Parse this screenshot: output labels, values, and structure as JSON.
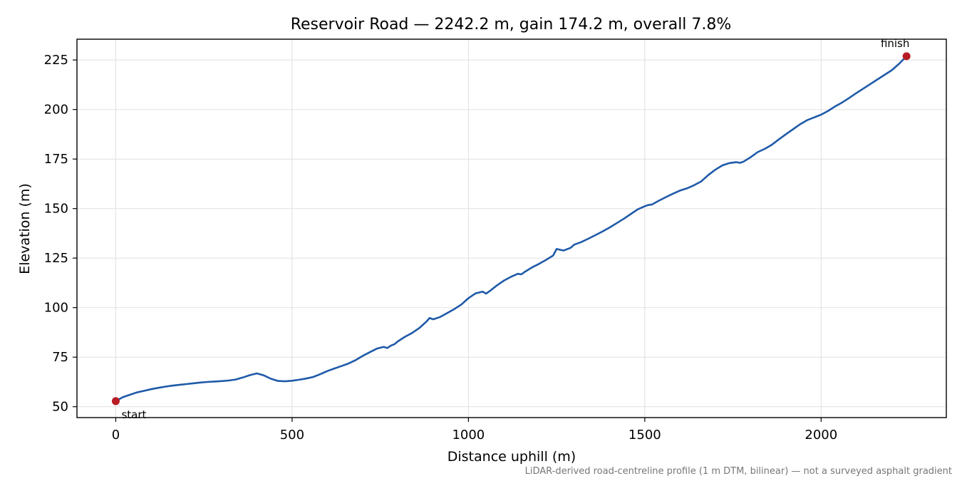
{
  "chart_data": {
    "type": "line",
    "title": "Reservoir Road — 2242.2 m, gain 174.2 m, overall 7.8%",
    "xlabel": "Distance uphill (m)",
    "ylabel": "Elevation (m)",
    "xlim": [
      -110,
      2355
    ],
    "ylim": [
      44.5,
      235.5
    ],
    "xticks": [
      0,
      500,
      1000,
      1500,
      2000
    ],
    "yticks": [
      50,
      75,
      100,
      125,
      150,
      175,
      200,
      225
    ],
    "grid": true,
    "caption": "LiDAR-derived road-centreline profile (1 m DTM, bilinear) — not a surveyed asphalt gradient",
    "colors": {
      "line": "#1f5aa8",
      "marker": "#b81c24",
      "grid": "#e0e0e0"
    },
    "series": [
      {
        "x": [
          0,
          20,
          40,
          60,
          80,
          100,
          120,
          140,
          160,
          180,
          200,
          220,
          240,
          260,
          280,
          300,
          320,
          340,
          360,
          380,
          400,
          420,
          440,
          460,
          480,
          500,
          520,
          540,
          560,
          580,
          600,
          620,
          640,
          660,
          680,
          700,
          720,
          740,
          760,
          770,
          780,
          790,
          800,
          820,
          840,
          860,
          880,
          890,
          900,
          920,
          940,
          960,
          980,
          1000,
          1020,
          1040,
          1050,
          1060,
          1080,
          1100,
          1120,
          1140,
          1150,
          1160,
          1180,
          1200,
          1220,
          1240,
          1250,
          1270,
          1290,
          1300,
          1320,
          1340,
          1360,
          1380,
          1400,
          1420,
          1440,
          1460,
          1480,
          1500,
          1510,
          1520,
          1540,
          1560,
          1580,
          1600,
          1620,
          1640,
          1660,
          1680,
          1700,
          1720,
          1740,
          1760,
          1770,
          1780,
          1800,
          1820,
          1840,
          1860,
          1880,
          1900,
          1920,
          1940,
          1960,
          1980,
          2000,
          2020,
          2040,
          2060,
          2080,
          2100,
          2120,
          2140,
          2160,
          2180,
          2200,
          2220,
          2242.2
        ],
        "y": [
          52.8,
          54.8,
          56.0,
          57.2,
          58.0,
          58.8,
          59.5,
          60.1,
          60.6,
          61.0,
          61.4,
          61.8,
          62.2,
          62.5,
          62.7,
          62.9,
          63.2,
          63.7,
          64.7,
          65.9,
          66.8,
          65.8,
          64.1,
          63.0,
          62.8,
          63.1,
          63.6,
          64.2,
          65.0,
          66.4,
          68.0,
          69.3,
          70.5,
          71.8,
          73.5,
          75.6,
          77.5,
          79.3,
          80.2,
          79.6,
          80.8,
          81.5,
          83.0,
          85.3,
          87.2,
          89.6,
          92.8,
          94.8,
          94.1,
          95.3,
          97.3,
          99.3,
          101.6,
          104.8,
          107.2,
          108.1,
          107.1,
          108.3,
          111.1,
          113.6,
          115.5,
          117.1,
          116.8,
          118.1,
          120.3,
          122.1,
          124.1,
          126.3,
          129.6,
          128.8,
          130.2,
          131.8,
          133.1,
          134.8,
          136.6,
          138.4,
          140.4,
          142.6,
          144.8,
          147.2,
          149.6,
          151.2,
          151.8,
          152.0,
          154.0,
          155.8,
          157.5,
          159.1,
          160.2,
          161.8,
          163.7,
          166.9,
          169.6,
          171.8,
          173.0,
          173.4,
          173.1,
          173.7,
          175.9,
          178.5,
          180.1,
          182.2,
          184.9,
          187.5,
          190.0,
          192.5,
          194.6,
          196.0,
          197.4,
          199.3,
          201.6,
          203.6,
          205.9,
          208.3,
          210.6,
          212.9,
          215.2,
          217.5,
          219.8,
          222.9,
          226.9
        ]
      }
    ],
    "markers": [
      {
        "x": 0,
        "y": 52.8,
        "label": "start"
      },
      {
        "x": 2242.2,
        "y": 226.9,
        "label": "finish"
      }
    ]
  }
}
